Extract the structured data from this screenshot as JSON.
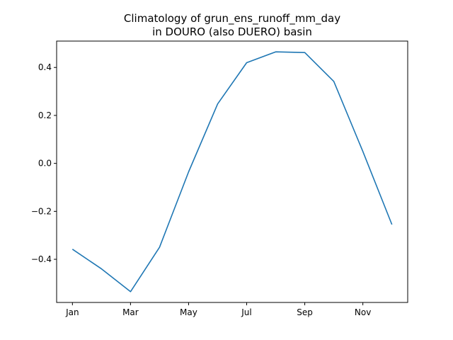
{
  "chart_data": {
    "type": "line",
    "title_line1": "Climatology of grun_ens_runoff_mm_day",
    "title_line2": "in DOURO (also DUERO) basin",
    "xlabel": "",
    "ylabel": "",
    "x": [
      "Jan",
      "Feb",
      "Mar",
      "Apr",
      "May",
      "Jun",
      "Jul",
      "Aug",
      "Sep",
      "Oct",
      "Nov",
      "Dec"
    ],
    "x_tick_labels": [
      "Jan",
      "Mar",
      "May",
      "Jul",
      "Sep",
      "Nov"
    ],
    "y_ticks": [
      -0.4,
      -0.2,
      0.0,
      0.2,
      0.4
    ],
    "y_tick_labels": [
      "−0.4",
      "−0.2",
      "0.0",
      "0.2",
      "0.4"
    ],
    "ylim": [
      -0.58,
      0.51
    ],
    "series": [
      {
        "color": "#1f77b4",
        "values": [
          -0.358,
          -0.44,
          -0.535,
          -0.35,
          -0.035,
          0.248,
          0.42,
          0.465,
          0.462,
          0.342,
          0.05,
          -0.255
        ]
      }
    ],
    "grid": false,
    "legend": "none"
  }
}
